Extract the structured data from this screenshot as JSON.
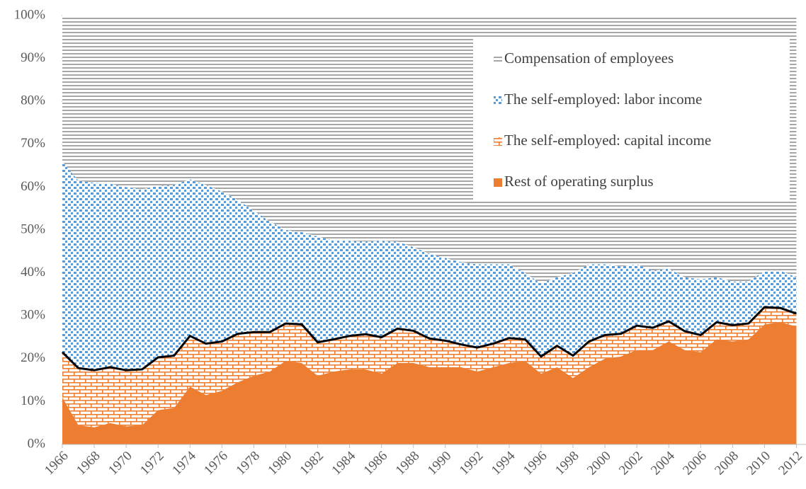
{
  "chart_data": {
    "type": "stacked-area",
    "x": [
      1966,
      1967,
      1968,
      1969,
      1970,
      1971,
      1972,
      1973,
      1974,
      1975,
      1976,
      1977,
      1978,
      1979,
      1980,
      1981,
      1982,
      1983,
      1984,
      1985,
      1986,
      1987,
      1988,
      1989,
      1990,
      1991,
      1992,
      1993,
      1994,
      1995,
      1996,
      1997,
      1998,
      1999,
      2000,
      2001,
      2002,
      2003,
      2004,
      2005,
      2006,
      2007,
      2008,
      2009,
      2010,
      2011,
      2012
    ],
    "xlim": [
      1966,
      2012.6
    ],
    "xticks": [
      1966,
      1968,
      1970,
      1972,
      1974,
      1976,
      1978,
      1980,
      1982,
      1984,
      1986,
      1988,
      1990,
      1992,
      1994,
      1996,
      1998,
      2000,
      2002,
      2004,
      2006,
      2008,
      2010,
      2012
    ],
    "ylim": [
      0,
      100
    ],
    "yticks": [
      {
        "value": 0,
        "label": "0%"
      },
      {
        "value": 10,
        "label": "10%"
      },
      {
        "value": 20,
        "label": "20%"
      },
      {
        "value": 30,
        "label": "30%"
      },
      {
        "value": 40,
        "label": "40%"
      },
      {
        "value": 50,
        "label": "50%"
      },
      {
        "value": 60,
        "label": "60%"
      },
      {
        "value": 70,
        "label": "70%"
      },
      {
        "value": 80,
        "label": "80%"
      },
      {
        "value": 90,
        "label": "90%"
      },
      {
        "value": 100,
        "label": "100%"
      }
    ],
    "legend": "top-right",
    "series": [
      {
        "name": "Rest of operating surplus",
        "color": "#ed7d31",
        "pattern": "solid",
        "values": [
          11,
          4.5,
          4,
          5,
          4.2,
          4.5,
          8,
          8.5,
          13.5,
          11.5,
          12.5,
          14.5,
          16,
          17,
          19.5,
          19,
          16,
          17,
          17.5,
          17.5,
          16.5,
          19,
          19,
          18,
          18,
          18,
          17,
          18,
          19,
          19.5,
          16.5,
          18,
          15.5,
          18,
          20,
          20.5,
          22,
          22,
          24,
          22,
          21.5,
          24.5,
          24,
          24.5,
          28,
          28.5,
          27.5
        ]
      },
      {
        "name": "The self-employed: capital income",
        "color": "#ed7d31",
        "pattern": "brick",
        "outline": "#000000",
        "values": [
          10.5,
          13.3,
          13.3,
          13,
          13.1,
          13,
          12.3,
          12.2,
          11.8,
          12,
          11.5,
          11.3,
          10.2,
          9.2,
          8.7,
          9,
          7.8,
          7.5,
          7.8,
          8.2,
          8.5,
          8,
          7.5,
          6.7,
          6.2,
          5.3,
          5.6,
          5.5,
          5.8,
          5,
          4,
          5,
          5.2,
          6,
          5.5,
          5.3,
          5.7,
          5.2,
          4.7,
          4.4,
          4,
          4,
          3.8,
          3.7,
          4,
          3.3,
          3
        ]
      },
      {
        "name": "The self-employed: labor income",
        "color": "#5b9bd5",
        "pattern": "checker",
        "values": [
          44.5,
          43.7,
          43.7,
          42.8,
          42.7,
          42,
          40,
          39.8,
          36.5,
          37,
          35,
          31.2,
          28.3,
          25.8,
          21.8,
          21.5,
          24.7,
          23,
          22.2,
          21.6,
          22.5,
          20.3,
          19.5,
          19.8,
          19.3,
          19.2,
          19.4,
          18.5,
          17.2,
          15.5,
          17,
          16,
          19.3,
          18,
          16.5,
          15.7,
          14.3,
          13.3,
          12.3,
          12.6,
          13,
          10.5,
          10.2,
          9.8,
          8.5,
          8.7,
          8.5
        ]
      },
      {
        "name": "Compensation of employees",
        "color": "#a6a6a6",
        "pattern": "horizontal-lines",
        "values": [
          34,
          38.5,
          39,
          39.2,
          40,
          40.5,
          39.7,
          39.5,
          38.2,
          39.5,
          41,
          43,
          45.5,
          48,
          50,
          50.5,
          51.5,
          52.5,
          52.5,
          52.7,
          52.5,
          52.7,
          54,
          55.5,
          56.5,
          57.5,
          58,
          58,
          58,
          60,
          62.5,
          61,
          60,
          58,
          58,
          58.5,
          58,
          59.5,
          59,
          61,
          61.5,
          61,
          62,
          62,
          59.5,
          59.5,
          61
        ]
      }
    ]
  }
}
